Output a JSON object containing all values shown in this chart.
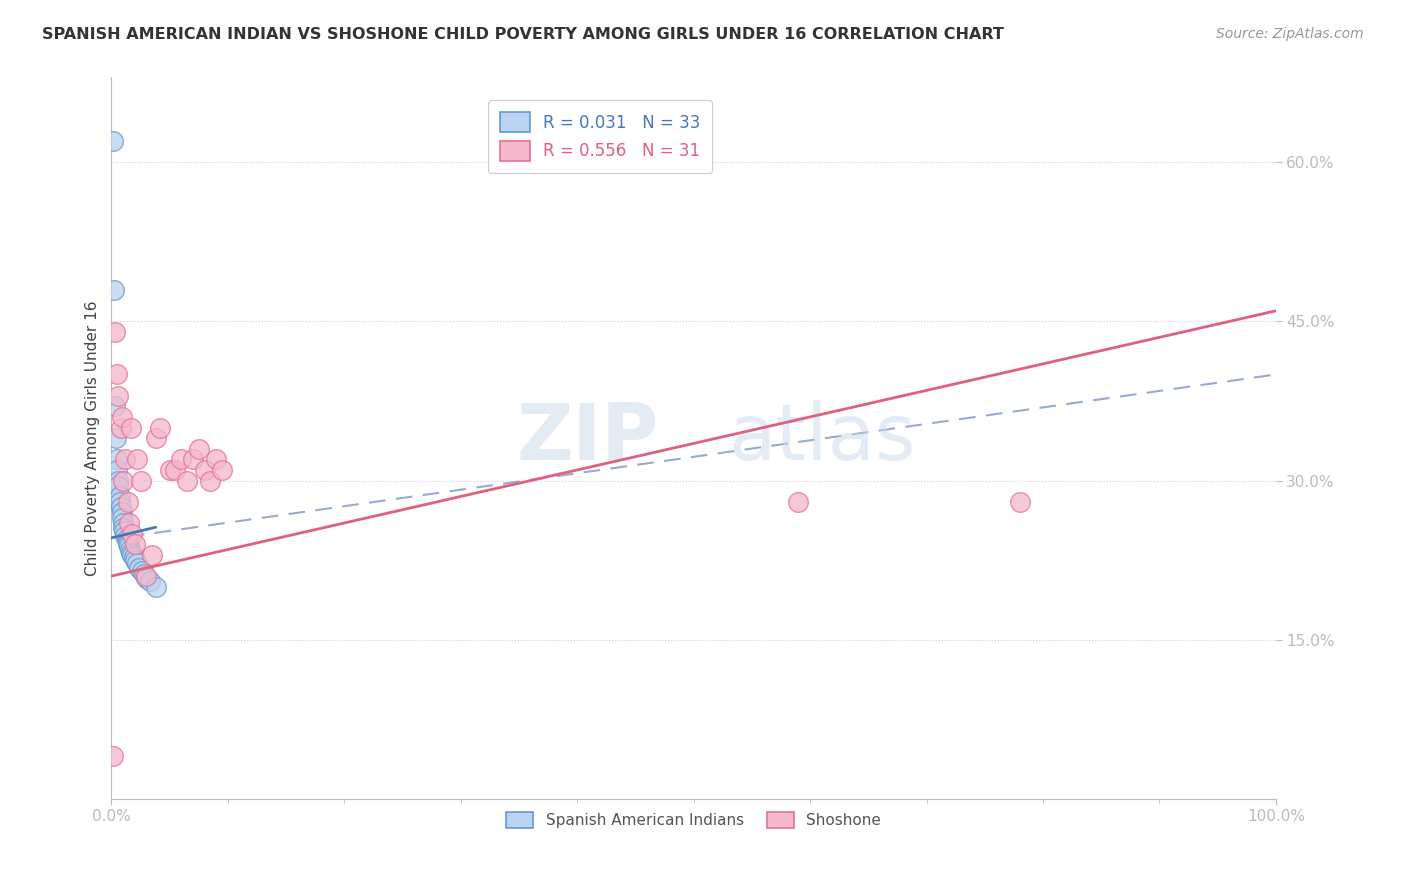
{
  "title": "SPANISH AMERICAN INDIAN VS SHOSHONE CHILD POVERTY AMONG GIRLS UNDER 16 CORRELATION CHART",
  "source": "Source: ZipAtlas.com",
  "ylabel": "Child Poverty Among Girls Under 16",
  "watermark": "ZIPatlas",
  "xlim": [
    0,
    1.0
  ],
  "ylim": [
    0,
    0.68
  ],
  "ytick_positions": [
    0.15,
    0.3,
    0.45,
    0.6
  ],
  "ytick_labels": [
    "15.0%",
    "30.0%",
    "45.0%",
    "60.0%"
  ],
  "series1_label": "Spanish American Indians",
  "series2_label": "Shoshone",
  "series1_color": "#b8d4f0",
  "series2_color": "#f5b8cc",
  "series1_edge_color": "#6699cc",
  "series2_edge_color": "#e87090",
  "series1_line_color": "#4477bb",
  "series2_line_color": "#e06080",
  "title_color": "#333333",
  "axis_label_color": "#444444",
  "tick_label_color": "#4477bb",
  "background_color": "#ffffff",
  "grid_color": "#ccccdd",
  "series1_x": [
    0.001,
    0.002,
    0.003,
    0.004,
    0.005,
    0.005,
    0.006,
    0.006,
    0.007,
    0.007,
    0.008,
    0.009,
    0.009,
    0.01,
    0.01,
    0.011,
    0.012,
    0.013,
    0.014,
    0.014,
    0.015,
    0.016,
    0.017,
    0.018,
    0.019,
    0.02,
    0.022,
    0.024,
    0.026,
    0.028,
    0.03,
    0.033,
    0.038
  ],
  "series1_y": [
    0.62,
    0.48,
    0.37,
    0.34,
    0.32,
    0.31,
    0.3,
    0.295,
    0.285,
    0.28,
    0.275,
    0.27,
    0.265,
    0.26,
    0.255,
    0.252,
    0.248,
    0.245,
    0.242,
    0.24,
    0.238,
    0.235,
    0.232,
    0.23,
    0.228,
    0.225,
    0.222,
    0.218,
    0.215,
    0.212,
    0.208,
    0.205,
    0.2
  ],
  "series2_x": [
    0.001,
    0.003,
    0.005,
    0.006,
    0.008,
    0.009,
    0.01,
    0.012,
    0.014,
    0.015,
    0.017,
    0.018,
    0.02,
    0.022,
    0.025,
    0.03,
    0.035,
    0.038,
    0.042,
    0.05,
    0.055,
    0.06,
    0.065,
    0.07,
    0.075,
    0.08,
    0.085,
    0.09,
    0.095,
    0.59,
    0.78
  ],
  "series2_y": [
    0.04,
    0.44,
    0.4,
    0.38,
    0.35,
    0.36,
    0.3,
    0.32,
    0.28,
    0.26,
    0.35,
    0.25,
    0.24,
    0.32,
    0.3,
    0.21,
    0.23,
    0.34,
    0.35,
    0.31,
    0.31,
    0.32,
    0.3,
    0.32,
    0.33,
    0.31,
    0.3,
    0.32,
    0.31,
    0.28,
    0.28
  ],
  "blue_line_x": [
    0.0,
    0.038
  ],
  "blue_line_y": [
    0.246,
    0.256
  ],
  "pink_line_x": [
    0.0,
    1.0
  ],
  "pink_line_y": [
    0.21,
    0.46
  ],
  "dashed_line_x": [
    0.014,
    1.0
  ],
  "dashed_line_y": [
    0.247,
    0.4
  ]
}
